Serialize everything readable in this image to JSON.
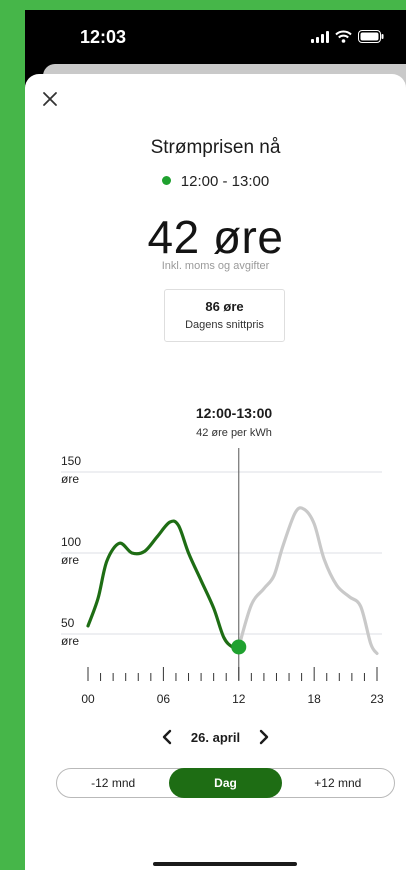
{
  "status_bar": {
    "time": "12:03"
  },
  "header": {
    "title": "Strømprisen nå",
    "current_interval": "12:00 - 13:00"
  },
  "price": {
    "value": "42 øre",
    "note": "Inkl. moms og avgifter",
    "avg_value": "86 øre",
    "avg_label": "Dagens snittpris"
  },
  "selection": {
    "range": "12:00-13:00",
    "price": "42 øre  per kWh"
  },
  "chart_data": {
    "type": "line",
    "y_tick_labels": [
      {
        "value": 150,
        "label": "150",
        "unit": "øre"
      },
      {
        "value": 100,
        "label": "100",
        "unit": "øre"
      },
      {
        "value": 50,
        "label": "50",
        "unit": "øre"
      }
    ],
    "x_tick_labels": [
      {
        "hour": 0,
        "label": "00"
      },
      {
        "hour": 6,
        "label": "06"
      },
      {
        "hour": 12,
        "label": "12"
      },
      {
        "hour": 18,
        "label": "18"
      },
      {
        "hour": 23,
        "label": "23"
      }
    ],
    "xlim": [
      0,
      23
    ],
    "ylim": [
      27,
      150
    ],
    "grid": true,
    "selected_hour": 12,
    "colors": {
      "past": "#1e6d14",
      "future": "#c9c9c9",
      "marker": "#1fa12f"
    },
    "series": [
      {
        "x": [
          0,
          0.8,
          1.5,
          2.5,
          3.5,
          4.5,
          5.5,
          6.5,
          7.2,
          8,
          9,
          10,
          10.8,
          11.5,
          12
        ],
        "values": [
          55,
          72,
          95,
          106,
          100,
          101,
          110,
          119,
          117,
          100,
          83,
          66,
          48,
          42,
          42
        ]
      },
      {
        "x": [
          12,
          13,
          14,
          14.8,
          15.5,
          16.5,
          17.2,
          18,
          18.8,
          19.8,
          20.8,
          21.7,
          22.5,
          23
        ],
        "values": [
          42,
          68,
          78,
          86,
          104,
          125,
          127,
          118,
          96,
          80,
          73,
          67,
          44,
          38
        ]
      }
    ]
  },
  "date_nav": {
    "date": "26. april"
  },
  "segments": {
    "prev": "-12 mnd",
    "day": "Dag",
    "next": "+12 mnd"
  }
}
